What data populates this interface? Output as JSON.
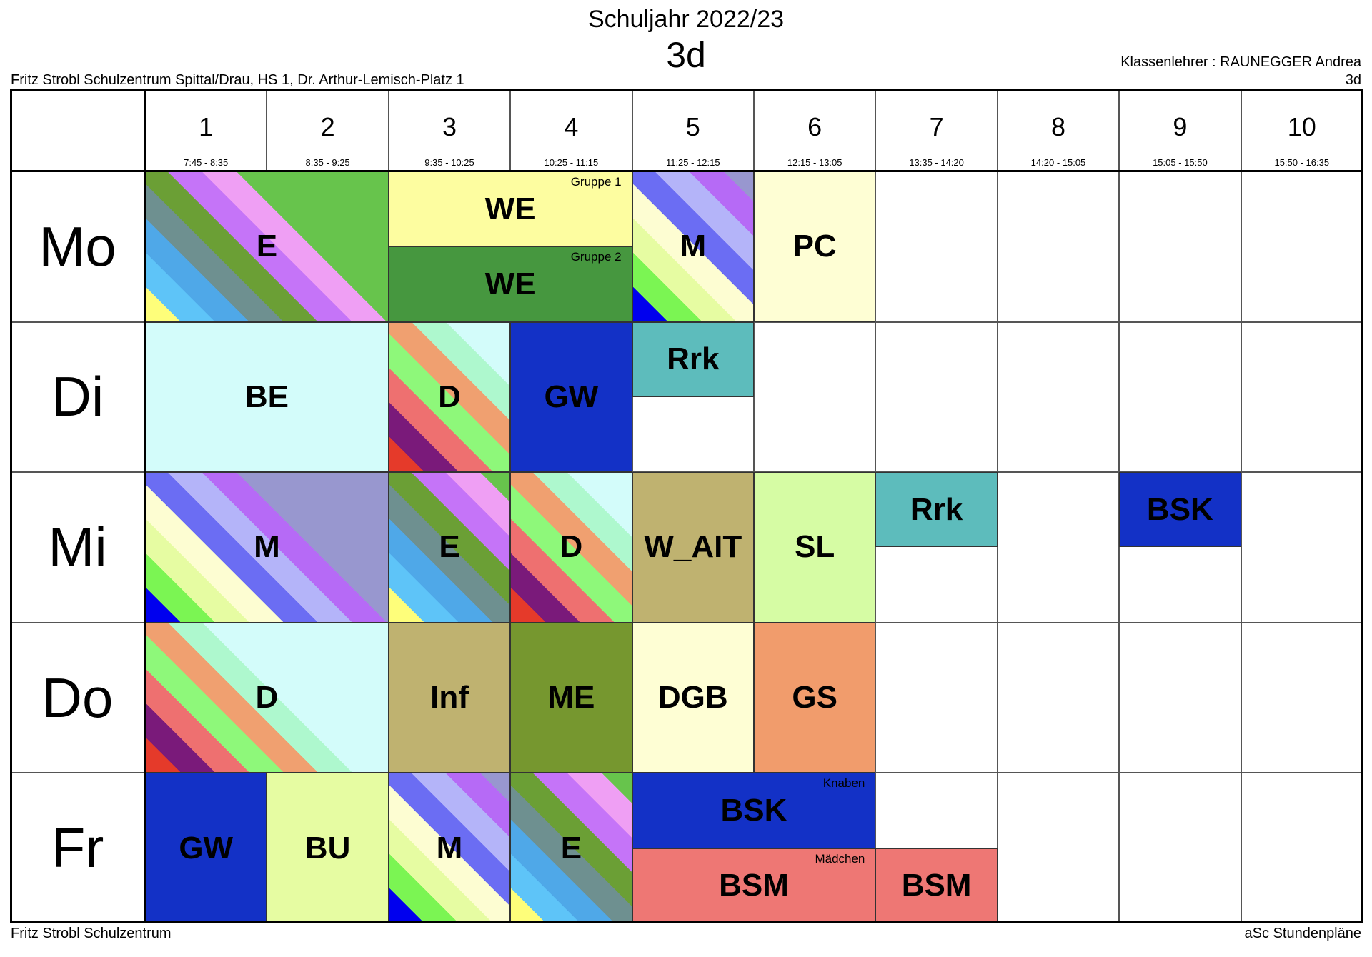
{
  "header": {
    "title": "Schuljahr 2022/23",
    "class": "3d",
    "school": "Fritz Strobl Schulzentrum Spittal/Drau, HS 1, Dr. Arthur-Lemisch-Platz 1",
    "teacher": "Klassenlehrer : RAUNEGGER Andrea",
    "teacher_class": "3d"
  },
  "footer": {
    "left": "Fritz Strobl Schulzentrum",
    "right": "aSc Stundenpläne"
  },
  "periods": [
    {
      "num": "1",
      "time": "7:45 - 8:35"
    },
    {
      "num": "2",
      "time": "8:35 - 9:25"
    },
    {
      "num": "3",
      "time": "9:35 - 10:25"
    },
    {
      "num": "4",
      "time": "10:25 - 11:15"
    },
    {
      "num": "5",
      "time": "11:25 - 12:15"
    },
    {
      "num": "6",
      "time": "12:15 - 13:05"
    },
    {
      "num": "7",
      "time": "13:35 - 14:20"
    },
    {
      "num": "8",
      "time": "14:20 - 15:05"
    },
    {
      "num": "9",
      "time": "15:05 - 15:50"
    },
    {
      "num": "10",
      "time": "15:50 - 16:35"
    }
  ],
  "days": [
    "Mo",
    "Di",
    "Mi",
    "Do",
    "Fr"
  ],
  "colors": {
    "WE1": "#fdfda0",
    "WE2": "#46973f",
    "PC": "#fefed4",
    "BE": "#d3fcfa",
    "GW": "#1331c6",
    "Rrk": "#5dbcbc",
    "W_AIT": "#bfb270",
    "SL": "#d6fca4",
    "BSK": "#1331c6",
    "Inf": "#bfb270",
    "ME": "#76972f",
    "DGB": "#fefed4",
    "GS": "#f19c6c",
    "BU": "#e6fca2",
    "BSM": "#ee7774"
  },
  "stripes": {
    "E": [
      "#fefe7a",
      "#5ec4f8",
      "#4fa8e8",
      "#6e9090",
      "#6b9f35",
      "#c574f8",
      "#ef9ff4",
      "#67c44c"
    ],
    "M": [
      "#0000ee",
      "#7bf553",
      "#e6fca2",
      "#fdfdd2",
      "#6b6df3",
      "#b4b4f9",
      "#b66af6",
      "#9897cf"
    ],
    "D": [
      "#e53a2a",
      "#7a1a7a",
      "#ee7070",
      "#8ef87a",
      "#f0a070",
      "#aef8ce",
      "#d3fcfa"
    ]
  },
  "lessons": [
    {
      "day": 0,
      "start": 0,
      "span": 2,
      "label": "E",
      "fill": "stripes:E"
    },
    {
      "day": 0,
      "start": 2,
      "span": 2,
      "half": "top",
      "label": "WE",
      "note": "Gruppe 1",
      "fill": "WE1"
    },
    {
      "day": 0,
      "start": 2,
      "span": 2,
      "half": "bottom",
      "label": "WE",
      "note": "Gruppe 2",
      "fill": "WE2"
    },
    {
      "day": 0,
      "start": 4,
      "span": 1,
      "label": "M",
      "fill": "stripes:M"
    },
    {
      "day": 0,
      "start": 5,
      "span": 1,
      "label": "PC",
      "fill": "PC"
    },
    {
      "day": 1,
      "start": 0,
      "span": 2,
      "label": "BE",
      "fill": "BE"
    },
    {
      "day": 1,
      "start": 2,
      "span": 1,
      "label": "D",
      "fill": "stripes:D"
    },
    {
      "day": 1,
      "start": 3,
      "span": 1,
      "label": "GW",
      "fill": "GW"
    },
    {
      "day": 1,
      "start": 4,
      "span": 1,
      "half": "top",
      "label": "Rrk",
      "fill": "Rrk"
    },
    {
      "day": 2,
      "start": 0,
      "span": 2,
      "label": "M",
      "fill": "stripes:M"
    },
    {
      "day": 2,
      "start": 2,
      "span": 1,
      "label": "E",
      "fill": "stripes:E"
    },
    {
      "day": 2,
      "start": 3,
      "span": 1,
      "label": "D",
      "fill": "stripes:D"
    },
    {
      "day": 2,
      "start": 4,
      "span": 1,
      "label": "W_AIT",
      "fill": "W_AIT"
    },
    {
      "day": 2,
      "start": 5,
      "span": 1,
      "label": "SL",
      "fill": "SL"
    },
    {
      "day": 2,
      "start": 6,
      "span": 1,
      "half": "top",
      "label": "Rrk",
      "fill": "Rrk"
    },
    {
      "day": 2,
      "start": 8,
      "span": 1,
      "half": "top",
      "label": "BSK",
      "fill": "BSK"
    },
    {
      "day": 3,
      "start": 0,
      "span": 2,
      "label": "D",
      "fill": "stripes:D"
    },
    {
      "day": 3,
      "start": 2,
      "span": 1,
      "label": "Inf",
      "fill": "Inf"
    },
    {
      "day": 3,
      "start": 3,
      "span": 1,
      "label": "ME",
      "fill": "ME"
    },
    {
      "day": 3,
      "start": 4,
      "span": 1,
      "label": "DGB",
      "fill": "DGB"
    },
    {
      "day": 3,
      "start": 5,
      "span": 1,
      "label": "GS",
      "fill": "GS"
    },
    {
      "day": 4,
      "start": 0,
      "span": 1,
      "label": "GW",
      "fill": "GW"
    },
    {
      "day": 4,
      "start": 1,
      "span": 1,
      "label": "BU",
      "fill": "BU"
    },
    {
      "day": 4,
      "start": 2,
      "span": 1,
      "label": "M",
      "fill": "stripes:M"
    },
    {
      "day": 4,
      "start": 3,
      "span": 1,
      "label": "E",
      "fill": "stripes:E"
    },
    {
      "day": 4,
      "start": 4,
      "span": 2,
      "half": "top",
      "label": "BSK",
      "note": "Knaben",
      "fill": "BSK"
    },
    {
      "day": 4,
      "start": 4,
      "span": 2,
      "half": "bottom",
      "label": "BSM",
      "note": "Mädchen",
      "fill": "BSM"
    },
    {
      "day": 4,
      "start": 6,
      "span": 1,
      "half": "bottom",
      "label": "BSM",
      "fill": "BSM"
    }
  ]
}
